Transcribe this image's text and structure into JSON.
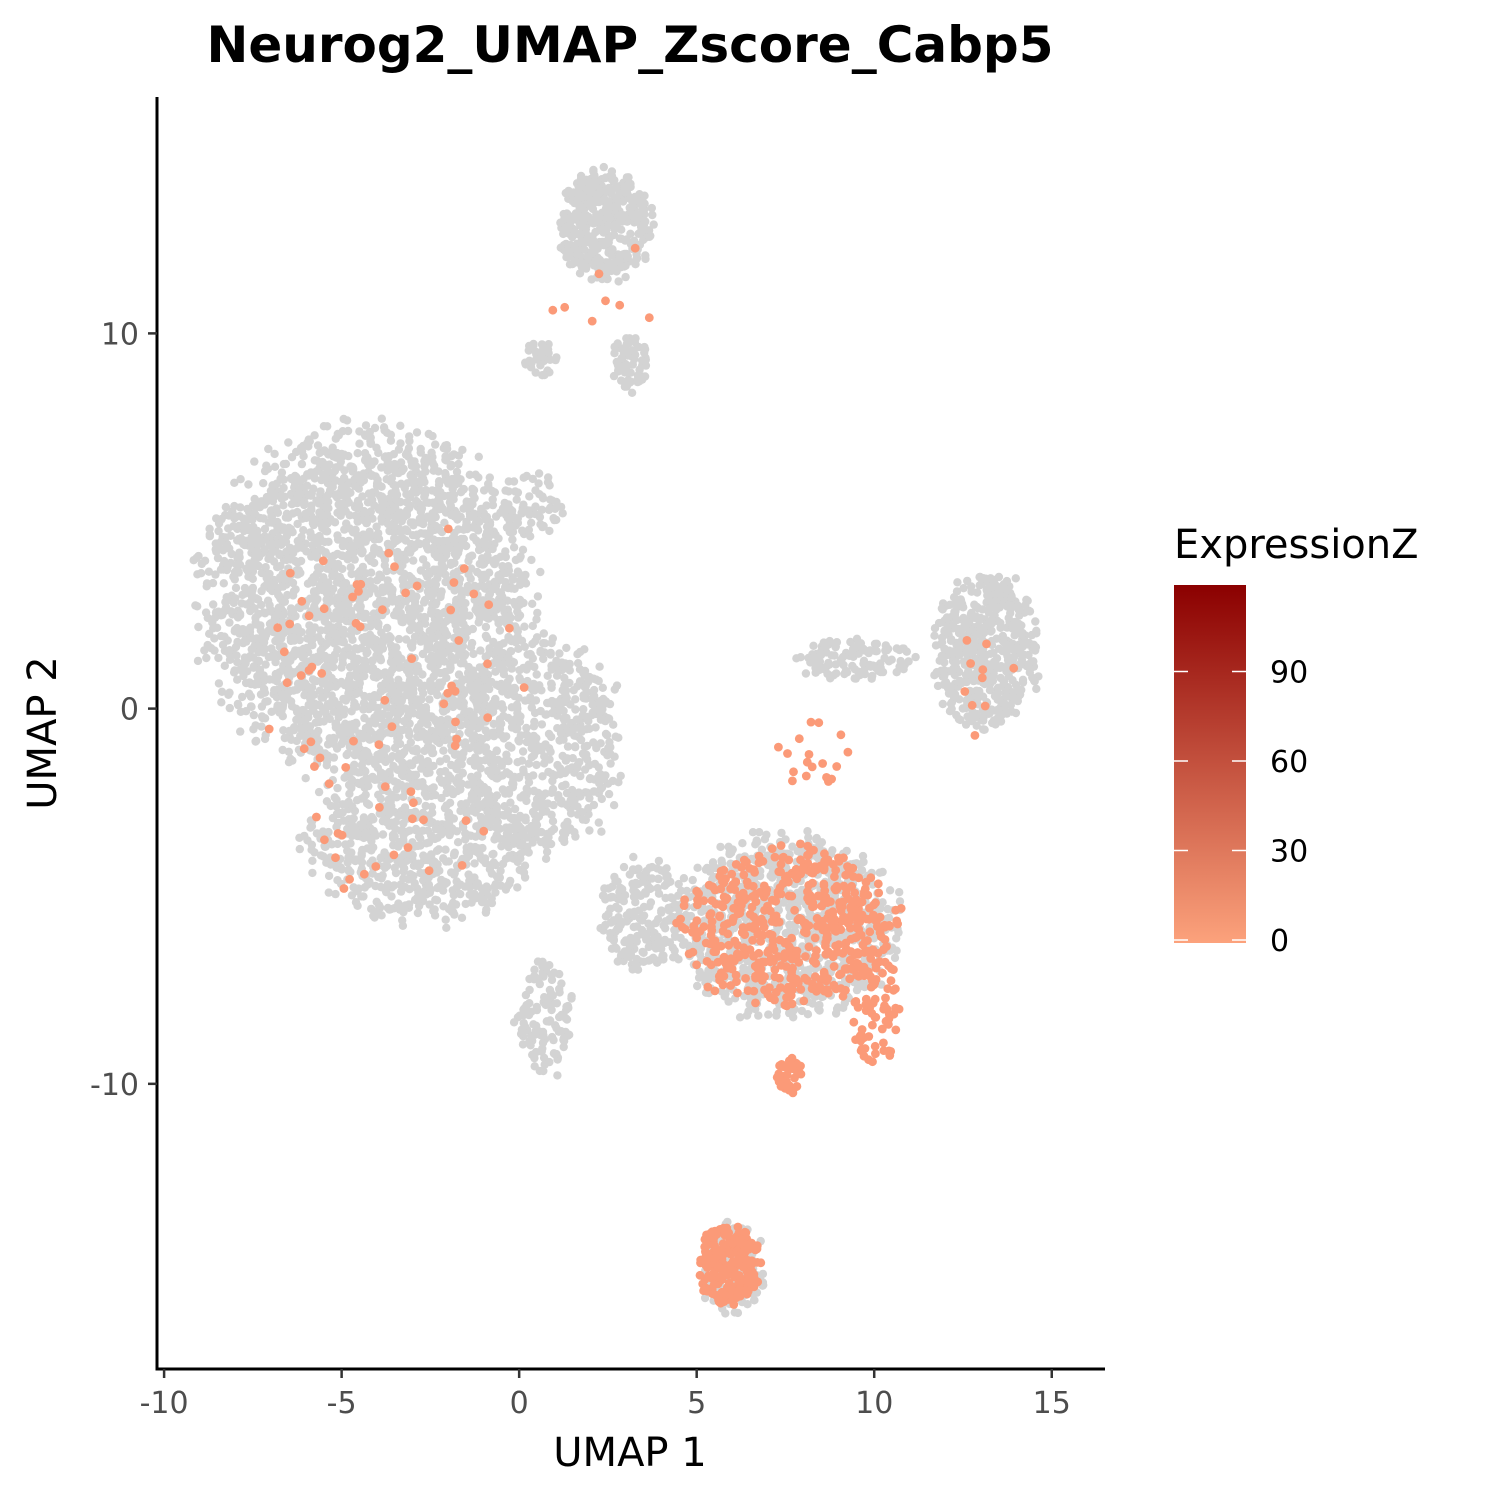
{
  "chart_data": {
    "type": "scatter",
    "title": "Neurog2_UMAP_Zscore_Cabp5",
    "xlabel": "UMAP 1",
    "ylabel": "UMAP 2",
    "xlim": [
      -10.2,
      16.5
    ],
    "ylim": [
      -17.6,
      16.3
    ],
    "x_ticks": [
      -10,
      -5,
      0,
      5,
      10,
      15
    ],
    "x_tick_labels": [
      "-10",
      "-5",
      "0",
      "5",
      "10",
      "15"
    ],
    "y_ticks": [
      -10,
      0,
      10
    ],
    "y_tick_labels": [
      "-10",
      "0",
      "10"
    ],
    "grid": false,
    "legend": {
      "title": "ExpressionZ",
      "position": "right",
      "range": [
        0,
        120
      ],
      "ticks": [
        0,
        30,
        60,
        90
      ],
      "tick_labels": [
        "0",
        "30",
        "60",
        "90"
      ],
      "colors": [
        "#fca27c",
        "#8b0000"
      ]
    },
    "background_color": "#d3d3d3",
    "expressed_color": "#fb9a78",
    "background_clusters": [
      {
        "name": "large-left-cluster",
        "cx": -4.3,
        "cy": 2.8,
        "rx": 4.6,
        "ry": 4.6,
        "n": 2800
      },
      {
        "name": "left-lower-lobe",
        "cx": -2.8,
        "cy": -3.5,
        "rx": 3.2,
        "ry": 2.2,
        "n": 700
      },
      {
        "name": "middle-bridge",
        "cx": 0.6,
        "cy": -1.0,
        "rx": 2.3,
        "ry": 3.0,
        "n": 600
      },
      {
        "name": "middle-upper",
        "cx": 0.4,
        "cy": 5.5,
        "rx": 0.9,
        "ry": 0.9,
        "n": 60
      },
      {
        "name": "lower-tail",
        "cx": 0.7,
        "cy": -8.3,
        "rx": 0.8,
        "ry": 1.6,
        "n": 120
      },
      {
        "name": "top-cluster",
        "cx": 2.4,
        "cy": 12.9,
        "rx": 1.3,
        "ry": 1.5,
        "n": 450
      },
      {
        "name": "top-right-blob",
        "cx": 3.1,
        "cy": 9.2,
        "rx": 0.55,
        "ry": 0.75,
        "n": 70
      },
      {
        "name": "top-left-blob",
        "cx": 0.6,
        "cy": 9.3,
        "rx": 0.5,
        "ry": 0.5,
        "n": 40
      },
      {
        "name": "right-cluster",
        "cx": 13.2,
        "cy": 1.5,
        "rx": 1.5,
        "ry": 2.1,
        "n": 500
      },
      {
        "name": "right-bridge",
        "cx": 9.4,
        "cy": 1.3,
        "rx": 1.7,
        "ry": 0.55,
        "n": 120
      },
      {
        "name": "central-lower",
        "cx": 7.5,
        "cy": -5.8,
        "rx": 3.2,
        "ry": 2.4,
        "n": 900
      },
      {
        "name": "central-left-arm",
        "cx": 3.5,
        "cy": -5.5,
        "rx": 1.2,
        "ry": 1.5,
        "n": 200
      },
      {
        "name": "bottom-cluster",
        "cx": 6.0,
        "cy": -14.9,
        "rx": 0.9,
        "ry": 1.2,
        "n": 150
      }
    ],
    "expressed_clusters": [
      {
        "name": "central-lower",
        "cx": 7.6,
        "cy": -5.8,
        "rx": 3.0,
        "ry": 2.1,
        "n": 520
      },
      {
        "name": "right-arm",
        "cx": 10.0,
        "cy": -8.0,
        "rx": 0.7,
        "ry": 1.6,
        "n": 70
      },
      {
        "name": "lower-arm",
        "cx": 7.6,
        "cy": -9.8,
        "rx": 0.4,
        "ry": 0.5,
        "n": 35
      },
      {
        "name": "bottom-cluster",
        "cx": 5.9,
        "cy": -14.8,
        "rx": 0.9,
        "ry": 1.1,
        "n": 230
      },
      {
        "name": "scattered-left",
        "cx": -3.5,
        "cy": 0.5,
        "rx": 3.8,
        "ry": 5.5,
        "n": 75
      },
      {
        "name": "scattered-right",
        "cx": 13.0,
        "cy": 0.5,
        "rx": 1.2,
        "ry": 1.6,
        "n": 10
      },
      {
        "name": "mid-strip",
        "cx": 8.2,
        "cy": -1.2,
        "rx": 1.2,
        "ry": 0.9,
        "n": 18
      },
      {
        "name": "top-scattered",
        "cx": 2.3,
        "cy": 10.5,
        "rx": 1.6,
        "ry": 2.6,
        "n": 8
      }
    ]
  }
}
